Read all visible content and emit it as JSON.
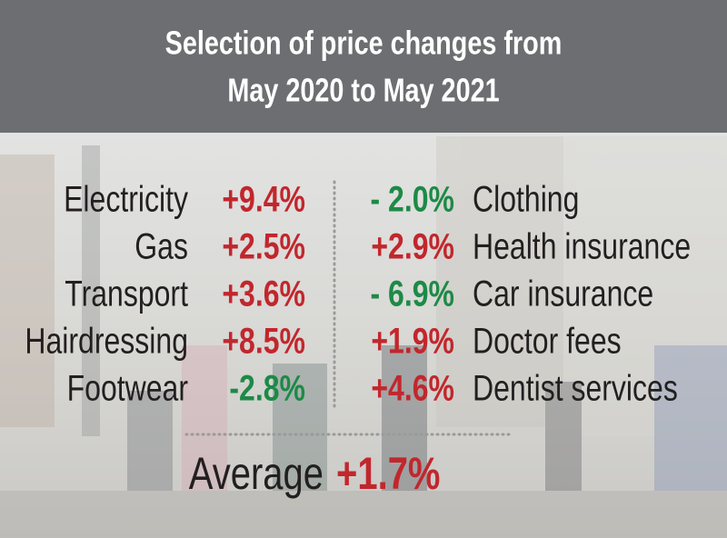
{
  "header": {
    "title_lines": [
      "Selection of price changes from",
      "May 2020 to May 2021"
    ]
  },
  "left": [
    {
      "label": "Electricity",
      "change": "+9.4%"
    },
    {
      "label": "Gas",
      "change": "+2.5%"
    },
    {
      "label": "Transport",
      "change": "+3.6%"
    },
    {
      "label": "Hairdressing",
      "change": "+8.5%"
    },
    {
      "label": "Footwear",
      "change": "-2.8%"
    }
  ],
  "right": [
    {
      "change": "- 2.0%",
      "label": "Clothing"
    },
    {
      "change": "+2.9%",
      "label": "Health insurance"
    },
    {
      "change": "- 6.9%",
      "label": "Car insurance"
    },
    {
      "change": "+1.9%",
      "label": "Doctor fees"
    },
    {
      "change": "+4.6%",
      "label": "Dentist services"
    }
  ],
  "average": {
    "label": "Average",
    "change": "+1.7%"
  }
}
